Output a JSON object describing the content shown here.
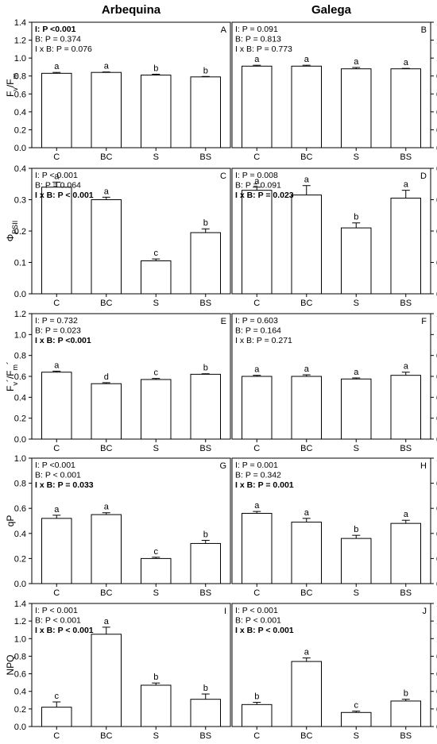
{
  "columns": [
    "Arbequina",
    "Galega"
  ],
  "rows": [
    {
      "ylabel_main": "F",
      "ylabel_sub1": "v",
      "ylabel_mid": "/F",
      "ylabel_sub2": "m",
      "ylim": [
        0,
        1.4
      ],
      "ticks": [
        "0.0",
        "0.2",
        "0.4",
        "0.6",
        "0.8",
        "1.0",
        "1.2",
        "1.4"
      ]
    },
    {
      "ylabel_main": "Φ",
      "ylabel_sub1": "PSII",
      "ylabel_mid": "",
      "ylabel_sub2": "",
      "ylim": [
        0,
        0.4
      ],
      "ticks": [
        "0.0",
        "0.1",
        "0.2",
        "0.3",
        "0.4"
      ]
    },
    {
      "ylabel_main": "F",
      "ylabel_sub1": "v",
      "ylabel_mid": "´/F",
      "ylabel_sub2": "m",
      "ylabel_end": "´",
      "ylim": [
        0,
        1.2
      ],
      "ticks": [
        "0.0",
        "0.2",
        "0.4",
        "0.6",
        "0.8",
        "1.0",
        "1.2"
      ]
    },
    {
      "ylabel_main": "qP",
      "ylabel_sub1": "",
      "ylabel_mid": "",
      "ylabel_sub2": "",
      "ylim": [
        0,
        1.0
      ],
      "ticks": [
        "0.0",
        "0.2",
        "0.4",
        "0.6",
        "0.8",
        "1.0"
      ]
    },
    {
      "ylabel_main": "NPQ",
      "ylabel_sub1": "",
      "ylabel_mid": "",
      "ylabel_sub2": "",
      "ylim": [
        0,
        1.4
      ],
      "ticks": [
        "0.0",
        "0.2",
        "0.4",
        "0.6",
        "0.8",
        "1.0",
        "1.2",
        "1.4"
      ]
    }
  ],
  "chart_data": [
    {
      "type": "bar",
      "panel": "A",
      "row": 0,
      "col": 0,
      "categories": [
        "C",
        "BC",
        "S",
        "BS"
      ],
      "values": [
        0.83,
        0.84,
        0.81,
        0.79
      ],
      "errors": [
        0.01,
        0.005,
        0.01,
        0.005
      ],
      "letters": [
        "a",
        "a",
        "b",
        "b"
      ],
      "stats": [
        {
          "text": "I: P <0.001",
          "bold": true
        },
        {
          "text": "B: P = 0.374",
          "bold": false
        },
        {
          "text": "I x B: P = 0.076",
          "bold": false
        }
      ]
    },
    {
      "type": "bar",
      "panel": "B",
      "row": 0,
      "col": 1,
      "categories": [
        "C",
        "BC",
        "S",
        "BS"
      ],
      "values": [
        0.91,
        0.91,
        0.88,
        0.88
      ],
      "errors": [
        0.01,
        0.01,
        0.015,
        0.005
      ],
      "letters": [
        "a",
        "a",
        "a",
        "a"
      ],
      "stats": [
        {
          "text": "I: P = 0.091",
          "bold": false
        },
        {
          "text": "B: P = 0.813",
          "bold": false
        },
        {
          "text": "I x B: P = 0.773",
          "bold": false
        }
      ]
    },
    {
      "type": "bar",
      "panel": "C",
      "row": 1,
      "col": 0,
      "categories": [
        "C",
        "BC",
        "S",
        "BS"
      ],
      "values": [
        0.34,
        0.3,
        0.105,
        0.195
      ],
      "errors": [
        0.016,
        0.008,
        0.006,
        0.012
      ],
      "letters": [
        "a",
        "a",
        "c",
        "b"
      ],
      "stats": [
        {
          "text": "I: P < 0.001",
          "bold": false
        },
        {
          "text": "B: P = 0.064",
          "bold": false
        },
        {
          "text": "I x B: P < 0.001",
          "bold": true
        }
      ]
    },
    {
      "type": "bar",
      "panel": "D",
      "row": 1,
      "col": 1,
      "categories": [
        "C",
        "BC",
        "S",
        "BS"
      ],
      "values": [
        0.33,
        0.315,
        0.21,
        0.305
      ],
      "errors": [
        0.01,
        0.03,
        0.016,
        0.025
      ],
      "letters": [
        "a",
        "a",
        "b",
        "a"
      ],
      "stats": [
        {
          "text": "I: P = 0.008",
          "bold": false
        },
        {
          "text": "B: P = 0.091",
          "bold": false
        },
        {
          "text": "I x B: P = 0.023",
          "bold": true
        }
      ]
    },
    {
      "type": "bar",
      "panel": "E",
      "row": 2,
      "col": 0,
      "categories": [
        "C",
        "BC",
        "S",
        "BS"
      ],
      "values": [
        0.64,
        0.53,
        0.57,
        0.62
      ],
      "errors": [
        0.01,
        0.01,
        0.01,
        0.005
      ],
      "letters": [
        "a",
        "d",
        "c",
        "b"
      ],
      "stats": [
        {
          "text": "I: P = 0.732",
          "bold": false
        },
        {
          "text": "B: P = 0.023",
          "bold": false
        },
        {
          "text": "I x B: P <0.001",
          "bold": true
        }
      ]
    },
    {
      "type": "bar",
      "panel": "F",
      "row": 2,
      "col": 1,
      "categories": [
        "C",
        "BC",
        "S",
        "BS"
      ],
      "values": [
        0.6,
        0.6,
        0.575,
        0.61
      ],
      "errors": [
        0.01,
        0.015,
        0.01,
        0.03
      ],
      "letters": [
        "a",
        "a",
        "a",
        "a"
      ],
      "stats": [
        {
          "text": "I: P = 0.603",
          "bold": false
        },
        {
          "text": "B: P = 0.164",
          "bold": false
        },
        {
          "text": "I x B: P = 0.271",
          "bold": false
        }
      ]
    },
    {
      "type": "bar",
      "panel": "G",
      "row": 3,
      "col": 0,
      "categories": [
        "C",
        "BC",
        "S",
        "BS"
      ],
      "values": [
        0.52,
        0.55,
        0.2,
        0.32
      ],
      "errors": [
        0.025,
        0.015,
        0.01,
        0.025
      ],
      "letters": [
        "a",
        "a",
        "c",
        "b"
      ],
      "stats": [
        {
          "text": "I: P <0.001",
          "bold": false
        },
        {
          "text": "B: P < 0.001",
          "bold": false
        },
        {
          "text": "I x B: P = 0.033",
          "bold": true
        }
      ]
    },
    {
      "type": "bar",
      "panel": "H",
      "row": 3,
      "col": 1,
      "categories": [
        "C",
        "BC",
        "S",
        "BS"
      ],
      "values": [
        0.56,
        0.49,
        0.36,
        0.48
      ],
      "errors": [
        0.015,
        0.03,
        0.025,
        0.025
      ],
      "letters": [
        "a",
        "a",
        "b",
        "a"
      ],
      "stats": [
        {
          "text": "I: P = 0.001",
          "bold": false
        },
        {
          "text": "B: P = 0.342",
          "bold": false
        },
        {
          "text": "I x B: P = 0.001",
          "bold": true
        }
      ]
    },
    {
      "type": "bar",
      "panel": "I",
      "row": 4,
      "col": 0,
      "categories": [
        "C",
        "BC",
        "S",
        "BS"
      ],
      "values": [
        0.22,
        1.05,
        0.47,
        0.31
      ],
      "errors": [
        0.06,
        0.08,
        0.025,
        0.06
      ],
      "letters": [
        "c",
        "a",
        "b",
        "b"
      ],
      "stats": [
        {
          "text": "I: P < 0.001",
          "bold": false
        },
        {
          "text": "B: P < 0.001",
          "bold": false
        },
        {
          "text": "I x B: P < 0.001",
          "bold": true
        }
      ]
    },
    {
      "type": "bar",
      "panel": "J",
      "row": 4,
      "col": 1,
      "categories": [
        "C",
        "BC",
        "S",
        "BS"
      ],
      "values": [
        0.25,
        0.74,
        0.16,
        0.29
      ],
      "errors": [
        0.025,
        0.04,
        0.015,
        0.02
      ],
      "letters": [
        "b",
        "a",
        "c",
        "b"
      ],
      "stats": [
        {
          "text": "I: P < 0.001",
          "bold": false
        },
        {
          "text": "B: P < 0.001",
          "bold": false
        },
        {
          "text": "I x B: P < 0.001",
          "bold": true
        }
      ]
    }
  ]
}
